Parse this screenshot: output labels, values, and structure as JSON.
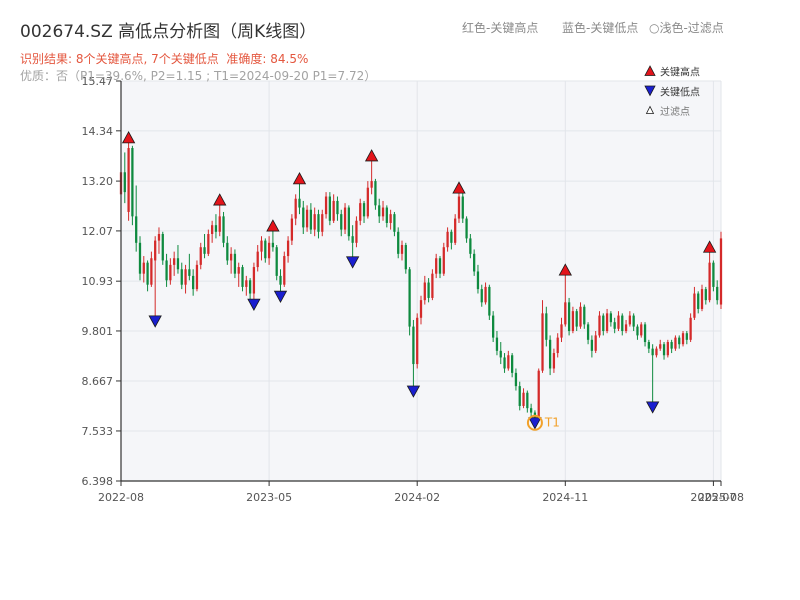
{
  "header": {
    "legend_high": "红色-关键高点",
    "legend_low": "蓝色-关键低点",
    "legend_filtered": "○浅色-过滤点",
    "result": "识别结果: 8个关键高点, 7个关键低点  准确度: 84.5%",
    "quality": "优质：否（P1=39.6%, P2=1.15 ; T1=2024-09-20 P1=7.72）"
  },
  "colors": {
    "up": "#d42a2a",
    "down": "#0e8a3f",
    "key_high": "#e3141b",
    "key_low": "#1a1fcf",
    "filtered": "#ffffff",
    "annotation": "#f2a12a",
    "marker_edge": "#1a1a1a",
    "plot_background": "#f5f6f9",
    "grid": "#e2e5ea"
  },
  "chart_data": {
    "type": "bar",
    "style": "candlestick",
    "title": "002674.SZ 高低点分析图（周K线图）",
    "xlabel": "",
    "ylabel": "",
    "grid": true,
    "legend_position": "top-right",
    "ylim": [
      6.398,
      15.47
    ],
    "xlim": [
      0,
      158
    ],
    "yticks": [
      "15.47",
      "14.34",
      "13.20",
      "12.07",
      "10.93",
      "9.801",
      "8.667",
      "7.533",
      "6.398"
    ],
    "xticks": [
      {
        "label": "2022-08",
        "index": 0
      },
      {
        "label": "2023-05",
        "index": 39
      },
      {
        "label": "2024-02",
        "index": 78
      },
      {
        "label": "2024-11",
        "index": 117
      },
      {
        "label": "2025-07",
        "index": 156
      },
      {
        "label": "2025-08",
        "index": 158
      }
    ],
    "candle_fields": [
      "open",
      "high",
      "low",
      "close"
    ],
    "candles": [
      [
        12.9,
        13.55,
        12.8,
        13.4
      ],
      [
        13.4,
        13.85,
        12.7,
        12.95
      ],
      [
        12.5,
        14.18,
        12.3,
        13.95
      ],
      [
        13.95,
        14.0,
        12.2,
        12.4
      ],
      [
        12.4,
        13.1,
        11.6,
        11.8
      ],
      [
        11.8,
        11.95,
        10.95,
        11.1
      ],
      [
        11.1,
        11.5,
        10.9,
        11.35
      ],
      [
        11.35,
        11.4,
        10.7,
        10.85
      ],
      [
        10.85,
        11.6,
        10.8,
        11.45
      ],
      [
        11.4,
        11.95,
        10.03,
        11.85
      ],
      [
        11.85,
        12.15,
        11.55,
        12.0
      ],
      [
        12.0,
        12.05,
        11.3,
        11.4
      ],
      [
        11.4,
        11.55,
        10.8,
        10.95
      ],
      [
        10.95,
        11.45,
        10.85,
        11.3
      ],
      [
        11.3,
        11.6,
        11.05,
        11.45
      ],
      [
        11.45,
        11.75,
        11.1,
        11.2
      ],
      [
        11.2,
        11.35,
        10.75,
        10.85
      ],
      [
        10.85,
        11.3,
        10.65,
        11.2
      ],
      [
        11.2,
        11.55,
        10.95,
        11.05
      ],
      [
        11.05,
        11.2,
        10.6,
        10.75
      ],
      [
        10.75,
        11.4,
        10.7,
        11.3
      ],
      [
        11.3,
        11.8,
        11.2,
        11.7
      ],
      [
        11.7,
        12.0,
        11.45,
        11.55
      ],
      [
        11.55,
        12.1,
        11.5,
        12.0
      ],
      [
        12.0,
        12.3,
        11.8,
        12.2
      ],
      [
        12.2,
        12.45,
        11.9,
        12.05
      ],
      [
        12.05,
        12.77,
        11.95,
        12.4
      ],
      [
        12.4,
        12.5,
        11.7,
        11.8
      ],
      [
        11.8,
        11.95,
        11.3,
        11.4
      ],
      [
        11.4,
        11.7,
        11.1,
        11.55
      ],
      [
        11.55,
        11.65,
        11.0,
        11.1
      ],
      [
        11.1,
        11.35,
        10.8,
        11.25
      ],
      [
        11.25,
        11.3,
        10.7,
        10.8
      ],
      [
        10.8,
        11.05,
        10.6,
        10.95
      ],
      [
        10.95,
        11.0,
        10.5,
        10.65
      ],
      [
        10.65,
        11.35,
        10.41,
        11.25
      ],
      [
        11.25,
        11.75,
        11.15,
        11.6
      ],
      [
        11.6,
        11.95,
        11.4,
        11.85
      ],
      [
        11.85,
        11.9,
        11.35,
        11.45
      ],
      [
        11.45,
        11.95,
        11.3,
        11.8
      ],
      [
        11.8,
        12.18,
        11.6,
        11.7
      ],
      [
        11.7,
        11.75,
        10.95,
        11.05
      ],
      [
        11.05,
        11.2,
        10.59,
        10.85
      ],
      [
        10.85,
        11.6,
        10.8,
        11.5
      ],
      [
        11.5,
        11.95,
        11.35,
        11.85
      ],
      [
        11.85,
        12.45,
        11.75,
        12.35
      ],
      [
        12.35,
        12.9,
        12.2,
        12.8
      ],
      [
        12.8,
        13.25,
        12.45,
        12.6
      ],
      [
        12.6,
        12.75,
        12.0,
        12.15
      ],
      [
        12.15,
        12.65,
        12.05,
        12.55
      ],
      [
        12.55,
        12.7,
        12.0,
        12.1
      ],
      [
        12.1,
        12.6,
        11.95,
        12.45
      ],
      [
        12.45,
        12.55,
        11.9,
        12.05
      ],
      [
        12.05,
        12.55,
        11.95,
        12.45
      ],
      [
        12.45,
        12.95,
        12.35,
        12.85
      ],
      [
        12.85,
        12.95,
        12.2,
        12.3
      ],
      [
        12.3,
        12.9,
        12.25,
        12.75
      ],
      [
        12.75,
        12.85,
        12.3,
        12.45
      ],
      [
        12.45,
        12.55,
        11.95,
        12.1
      ],
      [
        12.1,
        12.7,
        12.0,
        12.6
      ],
      [
        12.6,
        12.65,
        11.85,
        11.95
      ],
      [
        11.95,
        12.2,
        11.37,
        11.8
      ],
      [
        11.8,
        12.4,
        11.7,
        12.3
      ],
      [
        12.3,
        12.8,
        12.2,
        12.7
      ],
      [
        12.7,
        12.75,
        12.25,
        12.4
      ],
      [
        12.4,
        13.2,
        12.35,
        13.05
      ],
      [
        13.05,
        13.77,
        12.9,
        13.2
      ],
      [
        13.2,
        13.25,
        12.55,
        12.65
      ],
      [
        12.65,
        12.8,
        12.25,
        12.4
      ],
      [
        12.4,
        12.75,
        12.3,
        12.6
      ],
      [
        12.6,
        12.65,
        12.15,
        12.25
      ],
      [
        12.25,
        12.55,
        12.1,
        12.45
      ],
      [
        12.45,
        12.5,
        11.95,
        12.05
      ],
      [
        12.05,
        12.15,
        11.45,
        11.55
      ],
      [
        11.55,
        11.85,
        11.4,
        11.75
      ],
      [
        11.75,
        11.8,
        11.1,
        11.2
      ],
      [
        11.2,
        11.25,
        9.7,
        9.9
      ],
      [
        9.9,
        10.05,
        8.44,
        9.05
      ],
      [
        9.05,
        10.2,
        8.95,
        10.1
      ],
      [
        10.1,
        10.6,
        9.95,
        10.5
      ],
      [
        10.5,
        11.05,
        10.4,
        10.9
      ],
      [
        10.9,
        11.0,
        10.45,
        10.55
      ],
      [
        10.55,
        11.2,
        10.5,
        11.1
      ],
      [
        11.1,
        11.55,
        11.0,
        11.45
      ],
      [
        11.45,
        11.5,
        11.0,
        11.1
      ],
      [
        11.1,
        11.8,
        11.05,
        11.7
      ],
      [
        11.7,
        12.15,
        11.6,
        12.05
      ],
      [
        12.05,
        12.1,
        11.65,
        11.8
      ],
      [
        11.8,
        12.45,
        11.75,
        12.35
      ],
      [
        12.35,
        13.04,
        12.25,
        12.85
      ],
      [
        12.85,
        12.95,
        12.25,
        12.35
      ],
      [
        12.35,
        12.4,
        11.8,
        11.9
      ],
      [
        11.9,
        12.0,
        11.45,
        11.55
      ],
      [
        11.55,
        11.65,
        11.05,
        11.15
      ],
      [
        11.15,
        11.3,
        10.65,
        10.75
      ],
      [
        10.75,
        10.85,
        10.35,
        10.45
      ],
      [
        10.45,
        10.9,
        10.4,
        10.8
      ],
      [
        10.8,
        10.85,
        10.05,
        10.15
      ],
      [
        10.15,
        10.25,
        9.55,
        9.65
      ],
      [
        9.65,
        9.8,
        9.25,
        9.35
      ],
      [
        9.35,
        9.55,
        9.05,
        9.2
      ],
      [
        9.2,
        9.3,
        8.85,
        8.95
      ],
      [
        8.95,
        9.35,
        8.9,
        9.25
      ],
      [
        9.25,
        9.3,
        8.75,
        8.85
      ],
      [
        8.85,
        8.95,
        8.45,
        8.55
      ],
      [
        8.55,
        8.65,
        8.0,
        8.1
      ],
      [
        8.1,
        8.5,
        8.05,
        8.4
      ],
      [
        8.4,
        8.45,
        7.95,
        8.05
      ],
      [
        8.05,
        8.15,
        7.85,
        7.95
      ],
      [
        7.95,
        8.0,
        7.72,
        7.85
      ],
      [
        7.85,
        8.95,
        7.8,
        8.9
      ],
      [
        8.9,
        10.5,
        8.85,
        10.2
      ],
      [
        10.2,
        10.35,
        9.45,
        9.6
      ],
      [
        9.6,
        9.7,
        8.8,
        8.95
      ],
      [
        8.95,
        9.4,
        8.85,
        9.3
      ],
      [
        9.3,
        9.75,
        9.2,
        9.65
      ],
      [
        9.65,
        10.1,
        9.55,
        9.95
      ],
      [
        9.95,
        11.18,
        9.9,
        10.45
      ],
      [
        10.45,
        10.55,
        9.7,
        9.8
      ],
      [
        9.8,
        10.35,
        9.75,
        10.25
      ],
      [
        10.25,
        10.3,
        9.8,
        9.9
      ],
      [
        9.9,
        10.45,
        9.85,
        10.35
      ],
      [
        10.35,
        10.4,
        9.85,
        9.95
      ],
      [
        9.95,
        10.0,
        9.5,
        9.6
      ],
      [
        9.6,
        9.7,
        9.2,
        9.35
      ],
      [
        9.35,
        9.8,
        9.3,
        9.7
      ],
      [
        9.7,
        10.25,
        9.65,
        10.15
      ],
      [
        10.15,
        10.2,
        9.7,
        9.8
      ],
      [
        9.8,
        10.3,
        9.75,
        10.2
      ],
      [
        10.2,
        10.25,
        9.9,
        10.0
      ],
      [
        10.0,
        10.1,
        9.75,
        9.85
      ],
      [
        9.85,
        10.25,
        9.8,
        10.15
      ],
      [
        10.15,
        10.2,
        9.7,
        9.8
      ],
      [
        9.8,
        10.05,
        9.75,
        9.95
      ],
      [
        9.95,
        10.25,
        9.9,
        10.15
      ],
      [
        10.15,
        10.2,
        9.8,
        9.9
      ],
      [
        9.9,
        9.95,
        9.6,
        9.7
      ],
      [
        9.7,
        10.0,
        9.65,
        9.95
      ],
      [
        9.95,
        10.0,
        9.45,
        9.55
      ],
      [
        9.55,
        9.6,
        9.3,
        9.4
      ],
      [
        9.4,
        9.5,
        8.08,
        9.25
      ],
      [
        9.25,
        9.45,
        9.2,
        9.4
      ],
      [
        9.4,
        9.6,
        9.35,
        9.5
      ],
      [
        9.5,
        9.55,
        9.15,
        9.25
      ],
      [
        9.25,
        9.6,
        9.2,
        9.55
      ],
      [
        9.55,
        9.6,
        9.3,
        9.4
      ],
      [
        9.4,
        9.7,
        9.35,
        9.65
      ],
      [
        9.65,
        9.7,
        9.4,
        9.5
      ],
      [
        9.5,
        9.8,
        9.45,
        9.75
      ],
      [
        9.75,
        9.8,
        9.5,
        9.6
      ],
      [
        9.6,
        10.2,
        9.55,
        10.1
      ],
      [
        10.1,
        10.8,
        10.05,
        10.65
      ],
      [
        10.65,
        10.7,
        10.2,
        10.3
      ],
      [
        10.3,
        10.85,
        10.25,
        10.75
      ],
      [
        10.75,
        10.8,
        10.4,
        10.5
      ],
      [
        10.5,
        11.7,
        10.45,
        11.35
      ],
      [
        11.35,
        11.4,
        10.7,
        10.8
      ],
      [
        10.8,
        10.95,
        10.4,
        10.5
      ],
      [
        10.4,
        12.05,
        10.3,
        11.9
      ]
    ],
    "key_highs": [
      {
        "index": 2,
        "value": 14.18
      },
      {
        "index": 26,
        "value": 12.77
      },
      {
        "index": 40,
        "value": 12.18
      },
      {
        "index": 47,
        "value": 13.25
      },
      {
        "index": 66,
        "value": 13.77
      },
      {
        "index": 89,
        "value": 13.04
      },
      {
        "index": 117,
        "value": 11.18
      },
      {
        "index": 155,
        "value": 11.7
      }
    ],
    "key_lows": [
      {
        "index": 9,
        "value": 10.03
      },
      {
        "index": 35,
        "value": 10.41
      },
      {
        "index": 42,
        "value": 10.59
      },
      {
        "index": 61,
        "value": 11.37
      },
      {
        "index": 77,
        "value": 8.44
      },
      {
        "index": 109,
        "value": 7.72
      },
      {
        "index": 140,
        "value": 8.08
      }
    ],
    "filtered_points": [],
    "annotations": [
      {
        "label": "T1",
        "index": 109,
        "value": 7.72
      }
    ],
    "legend": [
      {
        "name": "关键高点",
        "marker": "triangle-up"
      },
      {
        "name": "关键低点",
        "marker": "triangle-down"
      },
      {
        "name": "过滤点",
        "marker": "triangle-up-hollow"
      }
    ]
  }
}
